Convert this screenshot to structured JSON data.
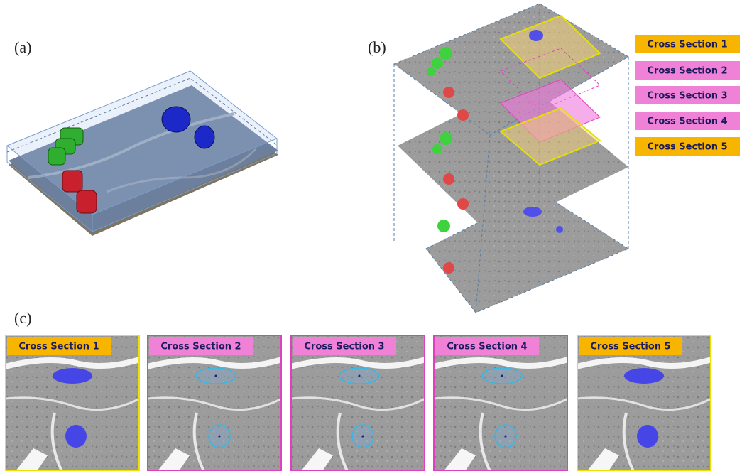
{
  "panels": {
    "a": {
      "label": "(a)"
    },
    "b": {
      "label": "(b)",
      "legend": [
        "Cross Section 1",
        "Cross Section 2",
        "Cross Section 3",
        "Cross Section 4",
        "Cross Section 5"
      ]
    },
    "c": {
      "label": "(c)",
      "tiles": [
        "Cross Section 1",
        "Cross Section 2",
        "Cross Section 3",
        "Cross Section 4",
        "Cross Section 5"
      ]
    }
  }
}
